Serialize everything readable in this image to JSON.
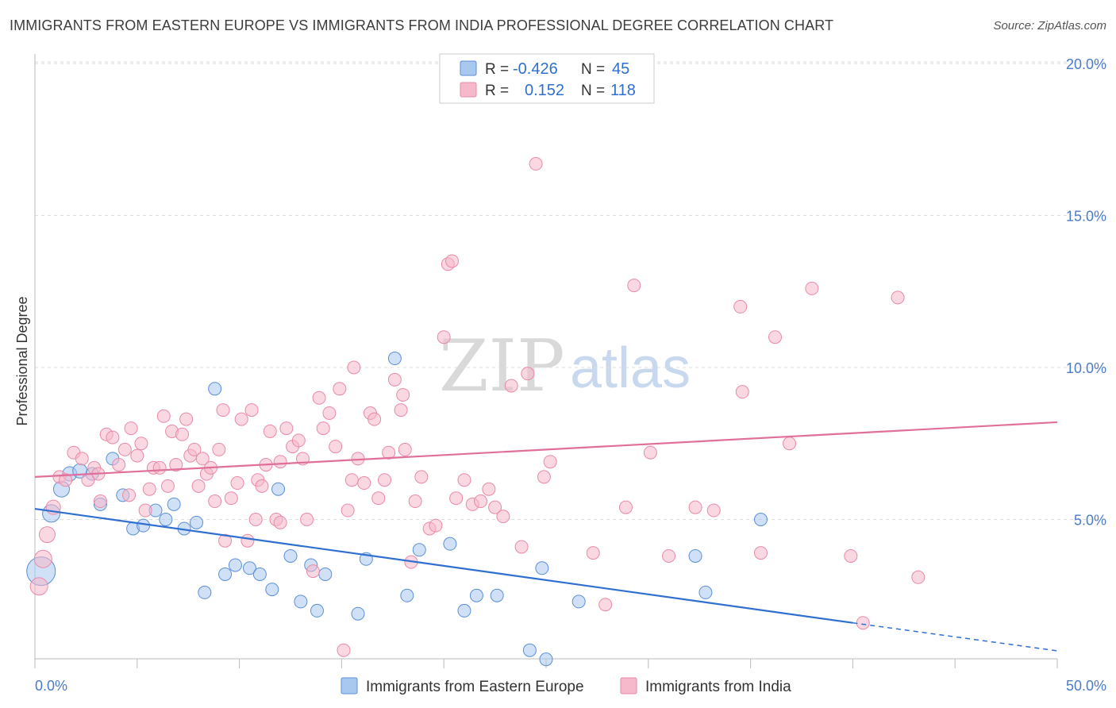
{
  "header": {
    "title": "IMMIGRANTS FROM EASTERN EUROPE VS IMMIGRANTS FROM INDIA PROFESSIONAL DEGREE CORRELATION CHART",
    "source": "Source: ZipAtlas.com"
  },
  "watermark": {
    "zip": "ZIP",
    "atlas": "atlas"
  },
  "colors": {
    "blue_fill": "#a9c8f0",
    "blue_stroke": "#5b8fd6",
    "blue_line": "#2f6fcf",
    "pink_fill": "#f6b8cb",
    "pink_stroke": "#e88aa8",
    "pink_line": "#e0709a",
    "grid": "#dddddd",
    "tick_text": "#4a7bc8"
  },
  "legend": {
    "rows": [
      {
        "r_label": "R =",
        "r_value": "-0.426",
        "n_label": "N =",
        "n_value": "45"
      },
      {
        "r_label": "R =",
        "r_value": "0.152",
        "n_label": "N =",
        "n_value": "118"
      }
    ]
  },
  "chart_data": {
    "type": "scatter",
    "title": "IMMIGRANTS FROM EASTERN EUROPE VS IMMIGRANTS FROM INDIA PROFESSIONAL DEGREE CORRELATION CHART",
    "xlabel": "",
    "ylabel": "Professional Degree",
    "xlim": [
      0,
      50
    ],
    "ylim": [
      0,
      20.5
    ],
    "x_tick_labels": [
      "0.0%",
      "50.0%"
    ],
    "y_ticks": [
      5,
      10,
      15,
      20
    ],
    "y_tick_labels": [
      "5.0%",
      "10.0%",
      "15.0%",
      "20.0%"
    ],
    "grid": true,
    "legend_position": "top-center",
    "series": [
      {
        "name": "Immigrants from Eastern Europe",
        "color": "#a9c8f0",
        "R": -0.426,
        "N": 45,
        "trend": {
          "x0": 0,
          "y0": 5.35,
          "x1": 40,
          "y1": 1.6,
          "dashed_to_x": 50,
          "dashed_to_y": 0.68
        },
        "points": [
          [
            0.3,
            3.3,
            18
          ],
          [
            0.8,
            5.2,
            11
          ],
          [
            1.3,
            6.0,
            10
          ],
          [
            1.7,
            6.5,
            9
          ],
          [
            2.2,
            6.6,
            9
          ],
          [
            2.8,
            6.5,
            8
          ],
          [
            3.2,
            5.5,
            8
          ],
          [
            3.8,
            7.0,
            8
          ],
          [
            4.3,
            5.8,
            8
          ],
          [
            4.8,
            4.7,
            8
          ],
          [
            5.3,
            4.8,
            8
          ],
          [
            5.9,
            5.3,
            8
          ],
          [
            6.4,
            5.0,
            8
          ],
          [
            6.8,
            5.5,
            8
          ],
          [
            7.3,
            4.7,
            8
          ],
          [
            7.9,
            4.9,
            8
          ],
          [
            8.3,
            2.6,
            8
          ],
          [
            8.8,
            9.3,
            8
          ],
          [
            9.3,
            3.2,
            8
          ],
          [
            9.8,
            3.5,
            8
          ],
          [
            10.5,
            3.4,
            8
          ],
          [
            11.0,
            3.2,
            8
          ],
          [
            11.6,
            2.7,
            8
          ],
          [
            11.9,
            6.0,
            8
          ],
          [
            12.5,
            3.8,
            8
          ],
          [
            13.0,
            2.3,
            8
          ],
          [
            13.5,
            3.5,
            8
          ],
          [
            13.8,
            2.0,
            8
          ],
          [
            14.2,
            3.2,
            8
          ],
          [
            15.8,
            1.9,
            8
          ],
          [
            16.2,
            3.7,
            8
          ],
          [
            17.6,
            10.3,
            8
          ],
          [
            18.2,
            2.5,
            8
          ],
          [
            18.8,
            4.0,
            8
          ],
          [
            20.3,
            4.2,
            8
          ],
          [
            21.0,
            2.0,
            8
          ],
          [
            21.6,
            2.5,
            8
          ],
          [
            22.6,
            2.5,
            8
          ],
          [
            24.2,
            0.7,
            8
          ],
          [
            24.8,
            3.4,
            8
          ],
          [
            25.0,
            0.4,
            8
          ],
          [
            26.6,
            2.3,
            8
          ],
          [
            32.3,
            3.8,
            8
          ],
          [
            32.8,
            2.6,
            8
          ],
          [
            35.5,
            5.0,
            8
          ]
        ]
      },
      {
        "name": "Immigrants from India",
        "color": "#f6b8cb",
        "R": 0.152,
        "N": 118,
        "trend": {
          "x0": 0,
          "y0": 6.4,
          "x1": 50,
          "y1": 8.2
        },
        "points": [
          [
            0.2,
            2.8,
            11
          ],
          [
            0.4,
            3.7,
            11
          ],
          [
            0.6,
            4.5,
            10
          ],
          [
            0.9,
            5.4,
            9
          ],
          [
            1.2,
            6.4,
            8
          ],
          [
            1.5,
            6.3,
            8
          ],
          [
            1.9,
            7.2,
            8
          ],
          [
            2.3,
            7.0,
            8
          ],
          [
            2.6,
            6.3,
            8
          ],
          [
            2.9,
            6.7,
            8
          ],
          [
            3.1,
            6.5,
            8
          ],
          [
            3.2,
            5.6,
            8
          ],
          [
            3.5,
            7.8,
            8
          ],
          [
            3.8,
            7.7,
            8
          ],
          [
            4.1,
            6.8,
            8
          ],
          [
            4.4,
            7.3,
            8
          ],
          [
            4.6,
            5.8,
            8
          ],
          [
            4.7,
            8.0,
            8
          ],
          [
            5.0,
            7.1,
            8
          ],
          [
            5.2,
            7.5,
            8
          ],
          [
            5.4,
            5.3,
            8
          ],
          [
            5.6,
            6.0,
            8
          ],
          [
            5.8,
            6.7,
            8
          ],
          [
            6.1,
            6.7,
            8
          ],
          [
            6.3,
            8.4,
            8
          ],
          [
            6.5,
            6.1,
            8
          ],
          [
            6.7,
            7.9,
            8
          ],
          [
            6.9,
            6.8,
            8
          ],
          [
            7.2,
            7.8,
            8
          ],
          [
            7.4,
            8.3,
            8
          ],
          [
            7.6,
            7.1,
            8
          ],
          [
            7.8,
            7.3,
            8
          ],
          [
            8.0,
            6.1,
            8
          ],
          [
            8.2,
            7.0,
            8
          ],
          [
            8.4,
            6.5,
            8
          ],
          [
            8.6,
            6.7,
            8
          ],
          [
            8.8,
            5.6,
            8
          ],
          [
            9.0,
            7.3,
            8
          ],
          [
            9.3,
            4.3,
            8
          ],
          [
            9.6,
            5.7,
            8
          ],
          [
            9.9,
            6.2,
            8
          ],
          [
            10.1,
            8.3,
            8
          ],
          [
            10.4,
            4.3,
            8
          ],
          [
            10.6,
            8.6,
            8
          ],
          [
            10.9,
            6.3,
            8
          ],
          [
            11.1,
            6.1,
            8
          ],
          [
            11.3,
            6.8,
            8
          ],
          [
            11.5,
            7.9,
            8
          ],
          [
            11.8,
            5.0,
            8
          ],
          [
            12.0,
            6.9,
            8
          ],
          [
            12.3,
            8.0,
            8
          ],
          [
            12.6,
            7.4,
            8
          ],
          [
            12.9,
            7.6,
            8
          ],
          [
            13.1,
            7.0,
            8
          ],
          [
            13.3,
            5.0,
            8
          ],
          [
            13.6,
            3.3,
            8
          ],
          [
            13.9,
            9.0,
            8
          ],
          [
            14.1,
            8.0,
            8
          ],
          [
            14.4,
            8.5,
            8
          ],
          [
            14.7,
            7.4,
            8
          ],
          [
            14.9,
            9.3,
            8
          ],
          [
            15.1,
            0.7,
            8
          ],
          [
            15.3,
            5.3,
            8
          ],
          [
            15.6,
            10.0,
            8
          ],
          [
            15.8,
            7.0,
            8
          ],
          [
            16.1,
            6.2,
            8
          ],
          [
            16.4,
            8.5,
            8
          ],
          [
            16.6,
            8.3,
            8
          ],
          [
            16.8,
            5.7,
            8
          ],
          [
            17.1,
            6.3,
            8
          ],
          [
            17.3,
            7.2,
            8
          ],
          [
            17.6,
            9.6,
            8
          ],
          [
            17.9,
            8.6,
            8
          ],
          [
            18.1,
            7.3,
            8
          ],
          [
            18.4,
            3.6,
            8
          ],
          [
            18.6,
            5.6,
            8
          ],
          [
            18.9,
            6.4,
            8
          ],
          [
            19.3,
            4.7,
            8
          ],
          [
            19.6,
            4.8,
            8
          ],
          [
            20.0,
            11.0,
            8
          ],
          [
            20.2,
            13.4,
            8
          ],
          [
            20.4,
            13.5,
            8
          ],
          [
            20.6,
            5.7,
            8
          ],
          [
            21.0,
            6.3,
            8
          ],
          [
            21.4,
            5.5,
            8
          ],
          [
            21.8,
            5.6,
            8
          ],
          [
            22.2,
            6.0,
            8
          ],
          [
            22.5,
            5.4,
            8
          ],
          [
            22.9,
            5.1,
            8
          ],
          [
            23.3,
            9.4,
            8
          ],
          [
            23.8,
            4.1,
            8
          ],
          [
            24.1,
            9.8,
            8
          ],
          [
            24.5,
            16.7,
            8
          ],
          [
            24.9,
            6.4,
            8
          ],
          [
            25.2,
            6.9,
            8
          ],
          [
            27.3,
            3.9,
            8
          ],
          [
            27.9,
            2.2,
            8
          ],
          [
            28.9,
            5.4,
            8
          ],
          [
            29.3,
            12.7,
            8
          ],
          [
            30.1,
            7.2,
            8
          ],
          [
            31.0,
            3.8,
            8
          ],
          [
            32.3,
            5.4,
            8
          ],
          [
            33.2,
            5.3,
            8
          ],
          [
            34.5,
            12.0,
            8
          ],
          [
            34.6,
            9.2,
            8
          ],
          [
            35.5,
            3.9,
            8
          ],
          [
            36.2,
            11.0,
            8
          ],
          [
            36.9,
            7.5,
            8
          ],
          [
            38.0,
            12.6,
            8
          ],
          [
            39.9,
            3.8,
            8
          ],
          [
            40.5,
            1.6,
            8
          ],
          [
            42.2,
            12.3,
            8
          ],
          [
            43.2,
            3.1,
            8
          ],
          [
            10.8,
            5.0,
            8
          ],
          [
            12.0,
            4.9,
            8
          ],
          [
            15.5,
            6.3,
            8
          ],
          [
            18.0,
            9.1,
            8
          ],
          [
            9.2,
            8.6,
            8
          ]
        ]
      }
    ]
  }
}
